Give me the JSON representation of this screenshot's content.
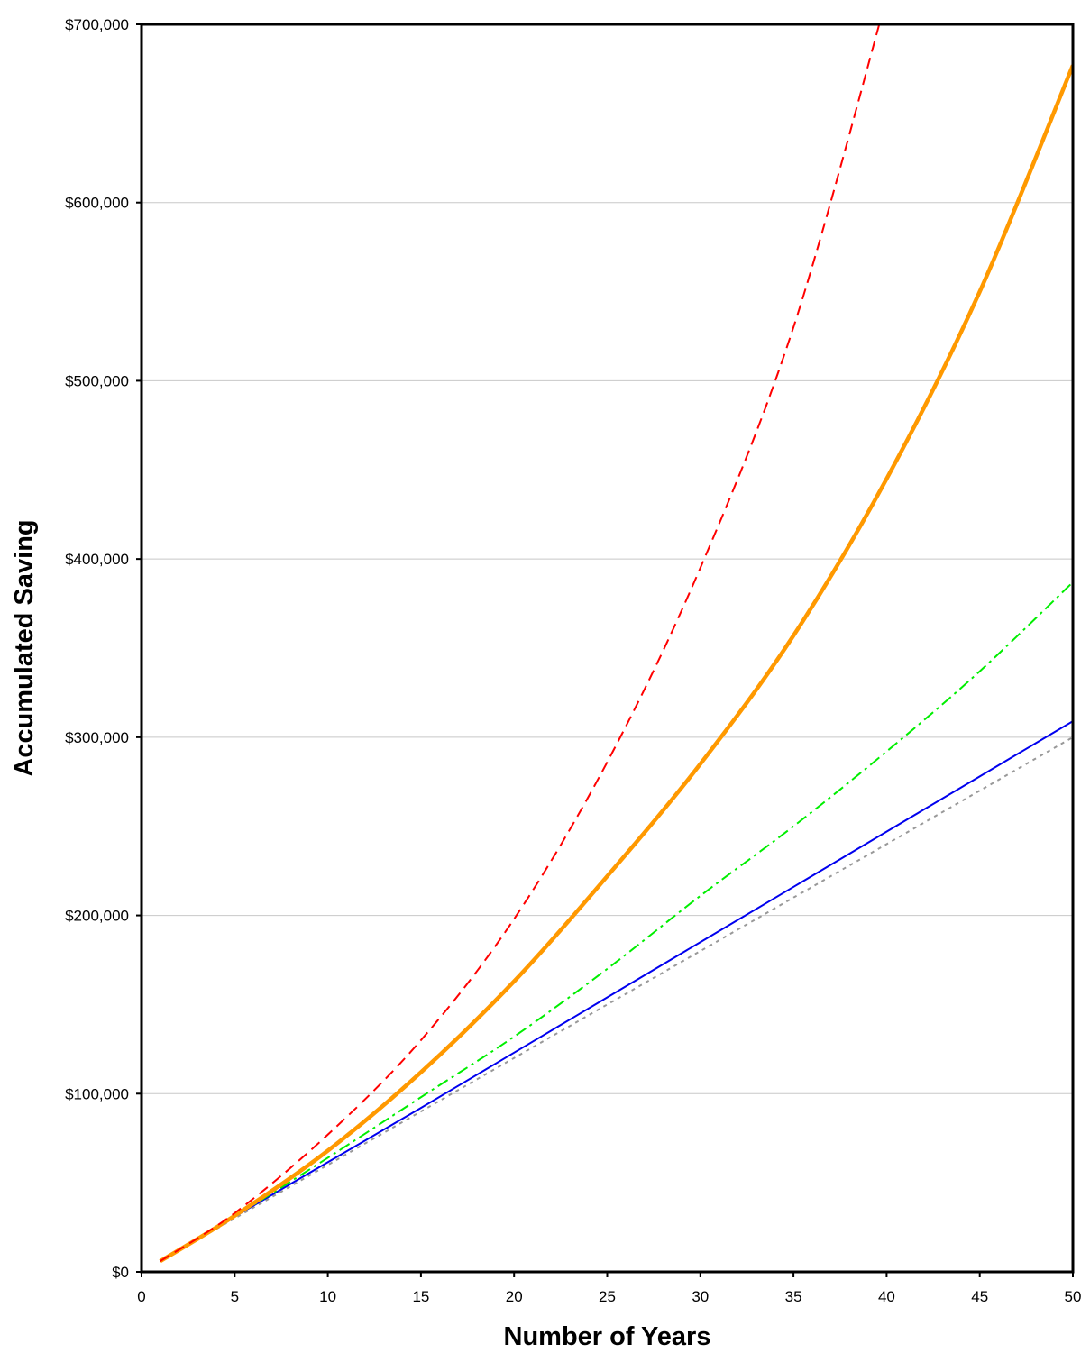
{
  "chart_data": {
    "type": "line",
    "title": "",
    "xlabel": "Number of Years",
    "ylabel": "Accumulated Saving",
    "xlim": [
      0,
      50
    ],
    "ylim": [
      0,
      700000
    ],
    "x_ticks": [
      0,
      5,
      10,
      15,
      20,
      25,
      30,
      35,
      40,
      45,
      50
    ],
    "y_ticks": [
      0,
      100000,
      200000,
      300000,
      400000,
      500000,
      600000,
      700000
    ],
    "x_tick_labels": [
      "0",
      "5",
      "10",
      "15",
      "20",
      "25",
      "30",
      "35",
      "40",
      "45",
      "50"
    ],
    "y_tick_labels": [
      "$0",
      "$100,000",
      "$200,000",
      "$300,000",
      "$400,000",
      "$500,000",
      "$600,000",
      "$700,000"
    ],
    "grid": "horizontal",
    "legend": "none",
    "x": [
      1,
      5,
      10,
      15,
      20,
      25,
      30,
      35,
      40,
      45,
      50
    ],
    "series": [
      {
        "color": "#ff0000",
        "style": "dashed",
        "values": [
          6000,
          33000,
          77000,
          130000,
          198000,
          286000,
          395000,
          530000,
          715000,
          null,
          null
        ]
      },
      {
        "color": "#ff9900",
        "style": "solid-thick",
        "values": [
          6000,
          31500,
          68000,
          112000,
          163000,
          222000,
          285000,
          357000,
          445000,
          550000,
          677000
        ]
      },
      {
        "color": "#00ee00",
        "style": "dash-dot",
        "values": [
          6000,
          31000,
          64000,
          98000,
          132000,
          170000,
          211000,
          250000,
          292000,
          337000,
          387000
        ]
      },
      {
        "color": "#0000ee",
        "style": "solid",
        "values": [
          6000,
          31000,
          61500,
          92000,
          123000,
          154000,
          185000,
          216000,
          247000,
          278000,
          309000
        ]
      },
      {
        "color": "#999999",
        "style": "dotted",
        "values": [
          6000,
          30000,
          60000,
          90000,
          120000,
          150000,
          180000,
          210000,
          240000,
          270000,
          300000
        ]
      }
    ]
  }
}
